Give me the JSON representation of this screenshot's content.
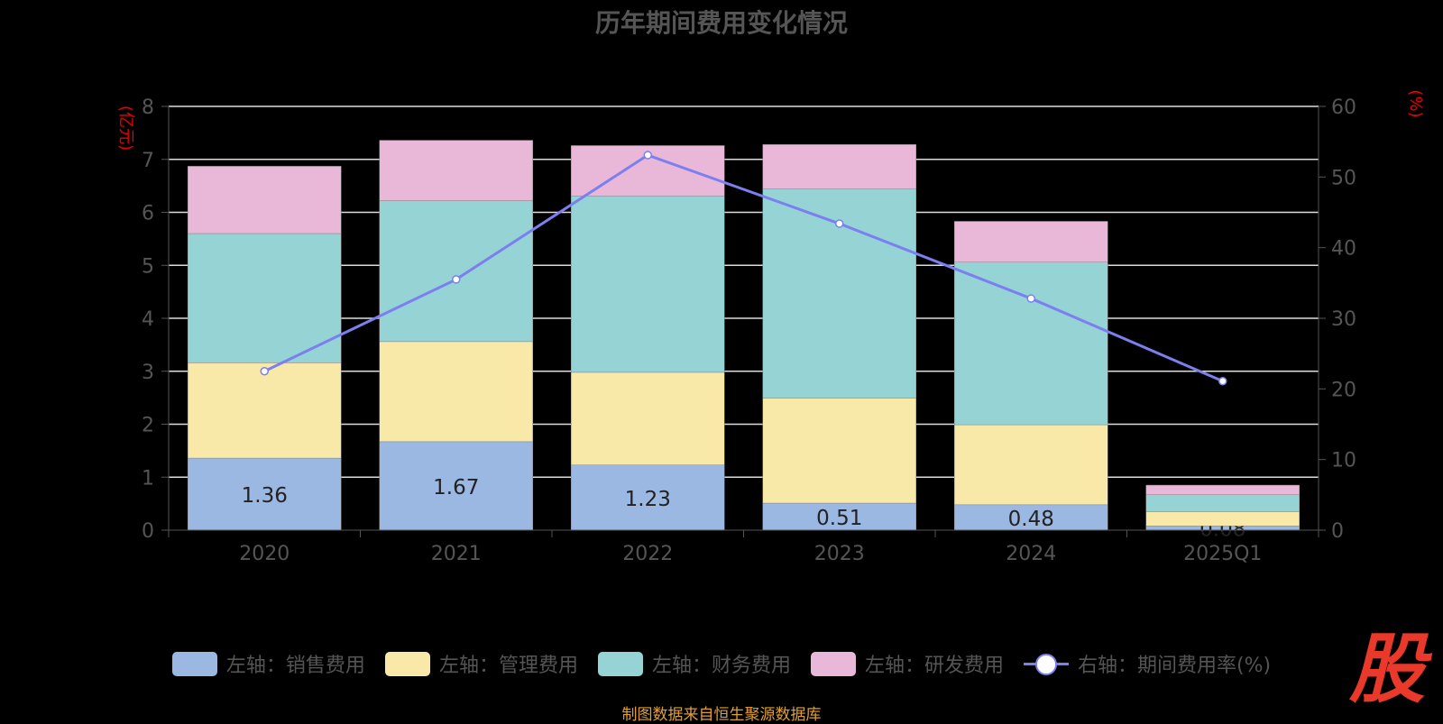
{
  "chart_data": {
    "type": "bar",
    "title": "历年期间费用变化情况",
    "categories": [
      "2020",
      "2021",
      "2022",
      "2023",
      "2024",
      "2025Q1"
    ],
    "ylabel_left": "(亿元)",
    "ylabel_right": "(%)",
    "ylim_left": [
      0,
      8
    ],
    "ylim_right": [
      0,
      60
    ],
    "yticks_left": [
      0,
      1,
      2,
      3,
      4,
      5,
      6,
      7,
      8
    ],
    "yticks_right": [
      0,
      10,
      20,
      30,
      40,
      50,
      60
    ],
    "stacked": true,
    "grid": true,
    "legend_position": "bottom",
    "series": [
      {
        "name": "左轴：销售费用",
        "axis": "left",
        "type": "bar",
        "color": "#9bb8e3",
        "values": [
          1.36,
          1.67,
          1.23,
          0.51,
          0.48,
          0.08
        ],
        "labels": [
          "1.36",
          "1.67",
          "1.23",
          "0.51",
          "0.48",
          "0.08"
        ]
      },
      {
        "name": "左轴：管理费用",
        "axis": "left",
        "type": "bar",
        "color": "#f9e9a8",
        "values": [
          1.8,
          1.89,
          1.75,
          1.98,
          1.51,
          0.27
        ]
      },
      {
        "name": "左轴：财务费用",
        "axis": "left",
        "type": "bar",
        "color": "#96d3d4",
        "values": [
          2.44,
          2.66,
          3.33,
          3.95,
          3.07,
          0.32
        ]
      },
      {
        "name": "左轴：研发费用",
        "axis": "left",
        "type": "bar",
        "color": "#e9b8d9",
        "values": [
          1.27,
          1.14,
          0.95,
          0.84,
          0.77,
          0.18
        ]
      },
      {
        "name": "右轴：期间费用率(%)",
        "axis": "right",
        "type": "line",
        "color": "#7b7ff0",
        "values": [
          22.5,
          35.5,
          53.1,
          43.4,
          32.8,
          21.1
        ]
      }
    ]
  },
  "footer": "制图数据来自恒生聚源数据库",
  "logo": "股"
}
